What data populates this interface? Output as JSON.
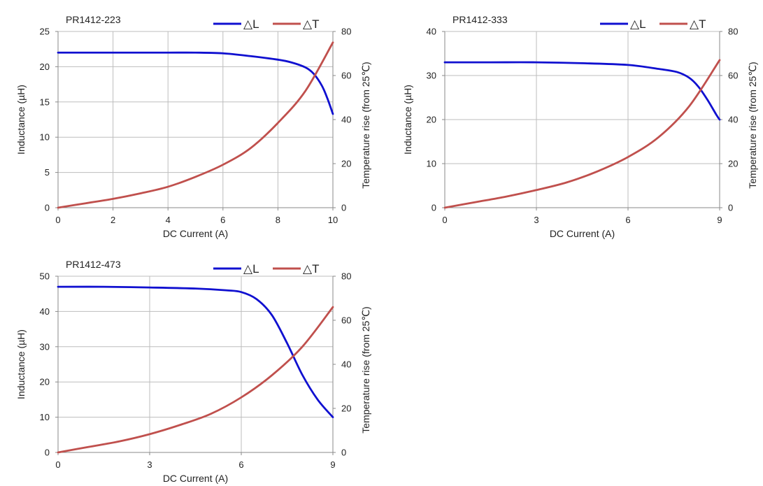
{
  "colors": {
    "inductance": "#1010d0",
    "temperature": "#c0504d",
    "grid": "#bdbdbd",
    "axis": "#8a8a8a"
  },
  "chart_data": [
    {
      "type": "line",
      "title": "PR1412-223",
      "xlabel": "DC Current (A)",
      "ylabel_left": "Inductance (µH)",
      "ylabel_right": "Temperature rise (from 25℃)",
      "xlim": [
        0,
        10
      ],
      "xticks": [
        0,
        2,
        4,
        6,
        8,
        10
      ],
      "ylim_left": [
        0,
        25
      ],
      "yticks_left": [
        0,
        5,
        10,
        15,
        20,
        25
      ],
      "ylim_right": [
        0,
        80
      ],
      "yticks_right": [
        0,
        20,
        40,
        60,
        80
      ],
      "grid": true,
      "legend_position": "top-right",
      "series": [
        {
          "name": "△L",
          "axis": "left",
          "x": [
            0,
            2,
            4,
            5,
            6,
            7,
            8,
            8.5,
            9,
            9.3,
            9.6,
            9.8,
            10
          ],
          "y": [
            22,
            22,
            22,
            22,
            21.9,
            21.5,
            21,
            20.6,
            19.9,
            19,
            17.3,
            15.5,
            13.3
          ]
        },
        {
          "name": "△T",
          "axis": "right",
          "x": [
            0,
            1,
            2,
            3,
            4,
            5,
            6,
            7,
            8,
            9,
            10
          ],
          "y": [
            0,
            2,
            4,
            6.5,
            9.5,
            14,
            19.5,
            27,
            38.5,
            53,
            75
          ]
        }
      ]
    },
    {
      "type": "line",
      "title": "PR1412-333",
      "xlabel": "DC Current (A)",
      "ylabel_left": "Inductance (µH)",
      "ylabel_right": "Temperature rise (from 25℃)",
      "xlim": [
        0,
        9
      ],
      "xticks": [
        0,
        3,
        6,
        9
      ],
      "ylim_left": [
        0,
        40
      ],
      "yticks_left": [
        0,
        10,
        20,
        30,
        40
      ],
      "ylim_right": [
        0,
        80
      ],
      "yticks_right": [
        0,
        20,
        40,
        60,
        80
      ],
      "grid": true,
      "legend_position": "top-right",
      "series": [
        {
          "name": "△L",
          "axis": "left",
          "x": [
            0,
            1.5,
            3,
            4.5,
            6,
            7,
            7.6,
            8,
            8.3,
            8.6,
            8.9,
            9
          ],
          "y": [
            33,
            33,
            33,
            32.8,
            32.4,
            31.5,
            30.8,
            29.5,
            27.5,
            24.5,
            21,
            20
          ]
        },
        {
          "name": "△T",
          "axis": "right",
          "x": [
            0,
            1,
            2,
            3,
            4,
            5,
            6,
            7,
            8,
            9
          ],
          "y": [
            0,
            2.5,
            5,
            8,
            11.5,
            16.5,
            23,
            32,
            46,
            67
          ]
        }
      ]
    },
    {
      "type": "line",
      "title": "PR1412-473",
      "xlabel": "DC Current (A)",
      "ylabel_left": "Inductance (µH)",
      "ylabel_right": "Temperature rise (from 25℃)",
      "xlim": [
        0,
        9
      ],
      "xticks": [
        0,
        3,
        6,
        9
      ],
      "ylim_left": [
        0,
        50
      ],
      "yticks_left": [
        0,
        10,
        20,
        30,
        40,
        50
      ],
      "ylim_right": [
        0,
        80
      ],
      "yticks_right": [
        0,
        20,
        40,
        60,
        80
      ],
      "grid": true,
      "legend_position": "top-right",
      "series": [
        {
          "name": "△L",
          "axis": "left",
          "x": [
            0,
            1.5,
            3,
            4.5,
            5.5,
            6,
            6.5,
            7,
            7.5,
            8,
            8.5,
            9
          ],
          "y": [
            47,
            47,
            46.8,
            46.5,
            46,
            45.5,
            43.5,
            39,
            31,
            22,
            15,
            10
          ]
        },
        {
          "name": "△T",
          "axis": "right",
          "x": [
            0,
            1,
            2,
            3,
            4,
            5,
            6,
            7,
            8,
            9
          ],
          "y": [
            0,
            2.5,
            5,
            8.3,
            12.5,
            17.5,
            25,
            35,
            48,
            66
          ]
        }
      ]
    }
  ]
}
